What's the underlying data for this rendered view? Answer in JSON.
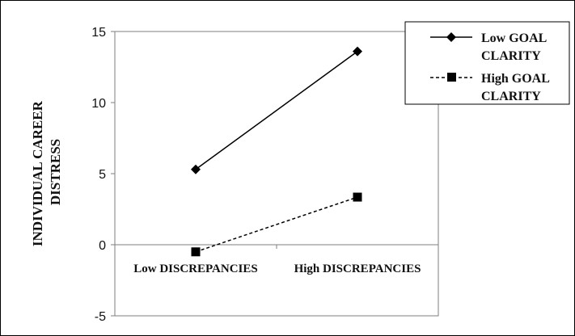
{
  "chart_data": {
    "type": "line",
    "title": "",
    "xlabel": "",
    "ylabel_lines": [
      "INDIVIDUAL CAREER",
      "DISTRESS"
    ],
    "categories": [
      "Low DISCREPANCIES",
      "High DISCREPANCIES"
    ],
    "ylim": [
      -5,
      15
    ],
    "yticks": [
      15,
      10,
      5,
      0,
      -5
    ],
    "grid": false,
    "legend_position": "top-right",
    "series": [
      {
        "name_lines": [
          "Low GOAL",
          "CLARITY"
        ],
        "values": [
          5.3,
          13.6
        ],
        "marker": "diamond",
        "line_style": "solid",
        "color": "#000000"
      },
      {
        "name_lines": [
          "High GOAL",
          "CLARITY"
        ],
        "values": [
          -0.5,
          3.35
        ],
        "marker": "square",
        "line_style": "dashed",
        "color": "#000000"
      }
    ]
  }
}
